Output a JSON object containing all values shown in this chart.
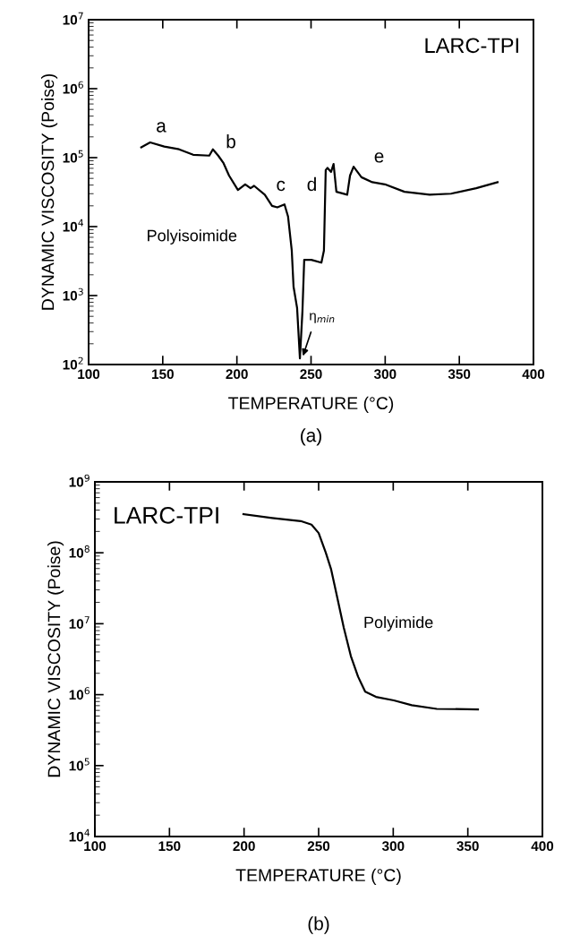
{
  "chart_data": [
    {
      "type": "line",
      "xlabel": "TEMPERATURE (°C)",
      "ylabel": "DYNAMIC VISCOSITY (Poise)",
      "log": "y",
      "grid": false,
      "line_style": "solid",
      "marker": "none",
      "series": [
        {
          "color": "#000000",
          "x": [
            135.5,
            141.5,
            151,
            161,
            170.5,
            181.4,
            183.8,
            187.4,
            191,
            194.7,
            200.7,
            205.6,
            209.2,
            211.6,
            218.8,
            223.7,
            227.3,
            232.1,
            234.5,
            237,
            238.2,
            240.6,
            242.5,
            244.2,
            245.4,
            250.2,
            257,
            258.7,
            259.9,
            261.1,
            263.5,
            265.2,
            267.1,
            274.4,
            276.3,
            278.7,
            284,
            291.3,
            299.8,
            313,
            330,
            344.4,
            361.4,
            375.8
          ],
          "values": [
            141000,
            166000,
            145000,
            132000,
            110000,
            107000,
            132000,
            107000,
            83000,
            55000,
            34000,
            41000,
            36000,
            39000,
            29000,
            20000,
            19000,
            21000,
            14000,
            4500,
            1350,
            660,
            123,
            590,
            3300,
            3300,
            3000,
            4500,
            66000,
            71000,
            62000,
            81000,
            32000,
            29000,
            55000,
            74000,
            52000,
            44000,
            41000,
            32000,
            29000,
            30000,
            36000,
            44000
          ]
        }
      ],
      "xlim": [
        100,
        400
      ],
      "xticks": [
        100,
        150,
        200,
        250,
        300,
        350,
        400
      ],
      "ylim": [
        100,
        10000000
      ],
      "yticks": [
        {
          "value": 100,
          "label": "10$^{2}$"
        },
        {
          "value": 1000,
          "label": "10$^{3}$"
        },
        {
          "value": 10000,
          "label": "10$^{4}$"
        },
        {
          "value": 100000,
          "label": "10$^{5}$"
        },
        {
          "value": 1000000,
          "label": "10$^{6}$"
        },
        {
          "value": 10000000,
          "label": "10$^{7}$"
        }
      ],
      "annotations": [
        "a",
        "b",
        "c",
        "d",
        "e",
        {
          "text": "η$_{min}$",
          "x": 242.5,
          "y": 123
        },
        "LARC-TPI",
        "Polyisoimide",
        "(a)"
      ]
    },
    {
      "type": "line",
      "xlabel": "TEMPERATURE (°C)",
      "ylabel": "DYNAMIC VISCOSITY (Poise)",
      "log": "y",
      "grid": false,
      "line_style": "solid",
      "marker": "none",
      "series": [
        {
          "color": "#000000",
          "x": [
            199.6,
            218.8,
            238,
            245.2,
            250,
            254.8,
            258.4,
            262,
            266.8,
            271.6,
            276.4,
            281.2,
            288.4,
            300.4,
            312.4,
            329.2,
            356.8
          ],
          "values": [
            350000000,
            310000000,
            280000000,
            250000000,
            190000000,
            100000000,
            58000000,
            26000000,
            8900000,
            3500000,
            1800000,
            1100000,
            930000,
            830000,
            710000,
            630000,
            620000
          ]
        }
      ],
      "xlim": [
        100,
        400
      ],
      "xticks": [
        100,
        150,
        200,
        250,
        300,
        350,
        400
      ],
      "ylim": [
        10000,
        1000000000
      ],
      "yticks": [
        {
          "value": 10000,
          "label": "10$^{4}$"
        },
        {
          "value": 100000,
          "label": "10$^{5}$"
        },
        {
          "value": 1000000,
          "label": "10$^{6}$"
        },
        {
          "value": 10000000,
          "label": "10$^{7}$"
        },
        {
          "value": 100000000,
          "label": "10$^{8}$"
        },
        {
          "value": 1000000000,
          "label": "10$^{9}$"
        }
      ],
      "annotations": [
        "LARC-TPI",
        "Polyimide",
        "(b)"
      ]
    }
  ]
}
